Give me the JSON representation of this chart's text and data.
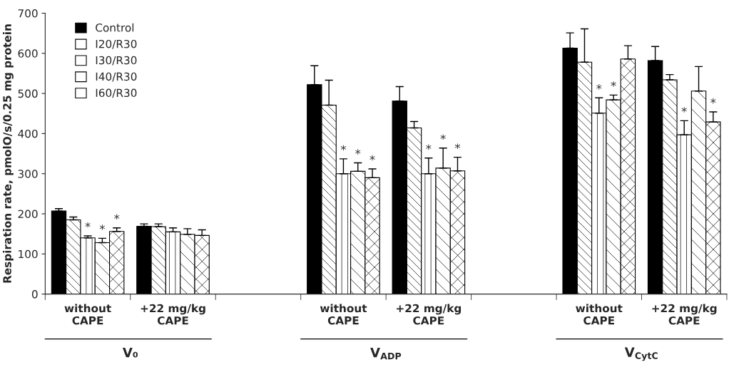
{
  "chart_data": {
    "type": "bar",
    "ylabel": "Respiration rate, pmolO/s/0.25 mg protein",
    "categories": [
      "without\nCAPE",
      "+22 mg/kg\nCAPE",
      null,
      "without\nCAPE",
      "+22 mg/kg\nCAPE",
      null,
      "without\nCAPE",
      "+22 mg/kg\nCAPE"
    ],
    "series": [
      {
        "name": "Control",
        "color": "#000000",
        "values": [
          207,
          169,
          null,
          522,
          481,
          null,
          613,
          582
        ],
        "errors": [
          [
            207,
            213
          ],
          [
            169,
            175
          ],
          null,
          [
            522,
            569
          ],
          [
            481,
            517
          ],
          null,
          [
            613,
            651
          ],
          [
            582,
            617
          ]
        ],
        "value_labels": [
          null,
          null,
          null,
          null,
          null,
          null,
          null,
          null
        ]
      },
      {
        "name": "I20/R30",
        "color": "#ffffff",
        "values": [
          185,
          168,
          null,
          471,
          414,
          null,
          578,
          534
        ],
        "errors": [
          [
            185,
            192
          ],
          [
            168,
            175
          ],
          null,
          [
            471,
            533
          ],
          [
            414,
            430
          ],
          null,
          [
            578,
            661
          ],
          [
            534,
            547
          ]
        ],
        "value_labels": [
          null,
          null,
          null,
          null,
          null,
          null,
          null,
          null
        ]
      },
      {
        "name": "I30/R30",
        "color": "#ffffff",
        "values": [
          140,
          155,
          null,
          300,
          300,
          null,
          451,
          397
        ],
        "errors": [
          [
            140,
            145
          ],
          [
            155,
            165
          ],
          null,
          [
            300,
            337
          ],
          [
            300,
            339
          ],
          null,
          [
            451,
            489
          ],
          [
            397,
            432
          ]
        ],
        "value_labels": [
          "*",
          null,
          null,
          "*",
          "*",
          null,
          "*",
          "*"
        ]
      },
      {
        "name": "I40/R30",
        "color": "#ffffff",
        "values": [
          128,
          149,
          null,
          306,
          314,
          null,
          484,
          506
        ],
        "errors": [
          [
            128,
            139
          ],
          [
            149,
            163
          ],
          null,
          [
            306,
            327
          ],
          [
            314,
            364
          ],
          null,
          [
            484,
            496
          ],
          [
            506,
            567
          ]
        ],
        "value_labels": [
          "*",
          null,
          null,
          "*",
          "*",
          null,
          "*",
          null
        ]
      },
      {
        "name": "I60/R30",
        "color": "#ffffff",
        "values": [
          156,
          146,
          null,
          290,
          307,
          null,
          586,
          429
        ],
        "errors": [
          [
            156,
            165
          ],
          [
            146,
            160
          ],
          null,
          [
            290,
            312
          ],
          [
            307,
            341
          ],
          null,
          [
            586,
            619
          ],
          [
            429,
            454
          ]
        ],
        "value_labels": [
          "*",
          null,
          null,
          "*",
          "*",
          null,
          null,
          "*"
        ]
      }
    ],
    "ylim": [
      0,
      700
    ],
    "yticks": [
      0,
      100,
      200,
      300,
      400,
      500,
      600,
      700
    ],
    "annotations": [
      "V₀",
      "V$_{ADP}$",
      "V$_{CytC}$"
    ],
    "legend": "top left",
    "grid": false
  }
}
